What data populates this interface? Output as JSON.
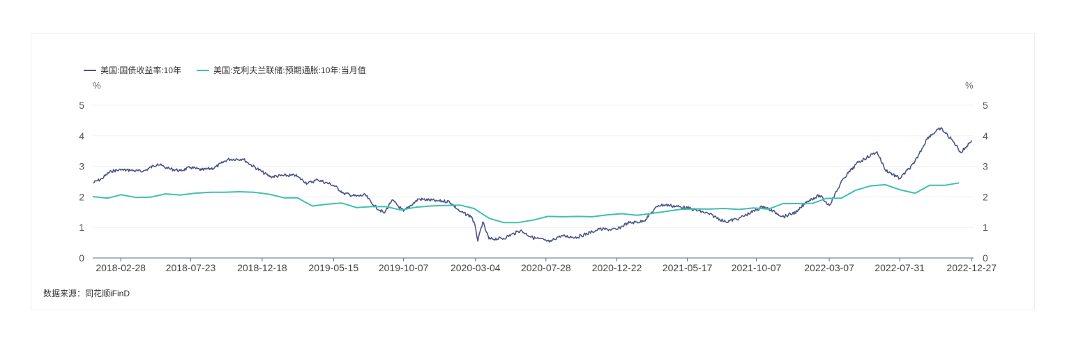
{
  "legend": [
    {
      "label": "美国:国债收益率:10年",
      "color": "#4b5488"
    },
    {
      "label": "美国:克利夫兰联储:预期通胀:10年:当月值",
      "color": "#3fbfb0"
    }
  ],
  "source_text": "数据来源：同花顺iFinD",
  "chart_data": {
    "type": "line",
    "y_unit_left": "%",
    "y_unit_right": "%",
    "ylim": [
      0,
      5
    ],
    "yticks": [
      0,
      1,
      2,
      3,
      4,
      5
    ],
    "xlim": [
      "2018-01-01",
      "2022-12-31"
    ],
    "xticks": [
      "2018-02-28",
      "2018-07-23",
      "2018-12-18",
      "2019-05-15",
      "2019-10-07",
      "2020-03-04",
      "2020-07-28",
      "2020-12-22",
      "2021-05-17",
      "2021-10-07",
      "2022-03-07",
      "2022-07-31",
      "2022-12-27"
    ],
    "grid": true,
    "legend_position": "top-left",
    "series": [
      {
        "name": "美国:国债收益率:10年",
        "color": "#4b5488",
        "style": "daily-noisy",
        "points": [
          [
            "2018-01-02",
            2.46
          ],
          [
            "2018-01-20",
            2.6
          ],
          [
            "2018-02-08",
            2.85
          ],
          [
            "2018-02-28",
            2.88
          ],
          [
            "2018-03-20",
            2.87
          ],
          [
            "2018-04-15",
            2.83
          ],
          [
            "2018-05-15",
            3.08
          ],
          [
            "2018-06-05",
            2.93
          ],
          [
            "2018-07-01",
            2.86
          ],
          [
            "2018-07-23",
            2.96
          ],
          [
            "2018-08-15",
            2.88
          ],
          [
            "2018-09-10",
            2.95
          ],
          [
            "2018-10-08",
            3.23
          ],
          [
            "2018-11-08",
            3.24
          ],
          [
            "2018-11-25",
            3.05
          ],
          [
            "2018-12-18",
            2.82
          ],
          [
            "2019-01-03",
            2.66
          ],
          [
            "2019-02-01",
            2.7
          ],
          [
            "2019-02-25",
            2.7
          ],
          [
            "2019-03-22",
            2.44
          ],
          [
            "2019-04-12",
            2.56
          ],
          [
            "2019-05-15",
            2.38
          ],
          [
            "2019-06-05",
            2.12
          ],
          [
            "2019-07-01",
            2.02
          ],
          [
            "2019-07-20",
            2.06
          ],
          [
            "2019-08-05",
            1.73
          ],
          [
            "2019-08-28",
            1.47
          ],
          [
            "2019-09-13",
            1.9
          ],
          [
            "2019-10-07",
            1.53
          ],
          [
            "2019-11-07",
            1.93
          ],
          [
            "2019-12-15",
            1.87
          ],
          [
            "2020-01-10",
            1.85
          ],
          [
            "2020-02-01",
            1.52
          ],
          [
            "2020-02-25",
            1.35
          ],
          [
            "2020-03-04",
            1.0
          ],
          [
            "2020-03-09",
            0.55
          ],
          [
            "2020-03-19",
            1.18
          ],
          [
            "2020-04-01",
            0.62
          ],
          [
            "2020-05-01",
            0.64
          ],
          [
            "2020-06-05",
            0.9
          ],
          [
            "2020-07-01",
            0.66
          ],
          [
            "2020-07-28",
            0.58
          ],
          [
            "2020-08-04",
            0.52
          ],
          [
            "2020-08-25",
            0.72
          ],
          [
            "2020-10-01",
            0.68
          ],
          [
            "2020-11-01",
            0.86
          ],
          [
            "2020-11-15",
            0.94
          ],
          [
            "2020-12-22",
            0.93
          ],
          [
            "2021-01-12",
            1.14
          ],
          [
            "2021-02-15",
            1.2
          ],
          [
            "2021-03-18",
            1.72
          ],
          [
            "2021-04-01",
            1.74
          ],
          [
            "2021-05-17",
            1.64
          ],
          [
            "2021-06-30",
            1.45
          ],
          [
            "2021-08-04",
            1.18
          ],
          [
            "2021-09-01",
            1.3
          ],
          [
            "2021-10-07",
            1.57
          ],
          [
            "2021-10-21",
            1.69
          ],
          [
            "2021-12-03",
            1.35
          ],
          [
            "2021-12-31",
            1.52
          ],
          [
            "2022-01-20",
            1.86
          ],
          [
            "2022-02-15",
            2.05
          ],
          [
            "2022-03-07",
            1.72
          ],
          [
            "2022-04-05",
            2.6
          ],
          [
            "2022-05-06",
            3.13
          ],
          [
            "2022-06-14",
            3.48
          ],
          [
            "2022-07-01",
            2.89
          ],
          [
            "2022-07-31",
            2.6
          ],
          [
            "2022-08-30",
            3.1
          ],
          [
            "2022-09-27",
            3.95
          ],
          [
            "2022-10-24",
            4.25
          ],
          [
            "2022-11-20",
            3.8
          ],
          [
            "2022-12-05",
            3.45
          ],
          [
            "2022-12-27",
            3.85
          ]
        ]
      },
      {
        "name": "美国:克利夫兰联储:预期通胀:10年:当月值",
        "color": "#3fbfb0",
        "style": "monthly-smooth",
        "points": [
          [
            "2018-01-01",
            2.01
          ],
          [
            "2018-02-01",
            1.96
          ],
          [
            "2018-03-01",
            2.07
          ],
          [
            "2018-04-01",
            1.98
          ],
          [
            "2018-05-01",
            1.99
          ],
          [
            "2018-06-01",
            2.1
          ],
          [
            "2018-07-01",
            2.06
          ],
          [
            "2018-08-01",
            2.12
          ],
          [
            "2018-09-01",
            2.15
          ],
          [
            "2018-10-01",
            2.15
          ],
          [
            "2018-11-01",
            2.17
          ],
          [
            "2018-12-01",
            2.15
          ],
          [
            "2019-01-01",
            2.09
          ],
          [
            "2019-02-01",
            1.97
          ],
          [
            "2019-03-01",
            1.97
          ],
          [
            "2019-04-01",
            1.7
          ],
          [
            "2019-05-01",
            1.76
          ],
          [
            "2019-06-01",
            1.8
          ],
          [
            "2019-07-01",
            1.65
          ],
          [
            "2019-08-01",
            1.68
          ],
          [
            "2019-09-01",
            1.68
          ],
          [
            "2019-10-01",
            1.57
          ],
          [
            "2019-11-01",
            1.66
          ],
          [
            "2019-12-01",
            1.7
          ],
          [
            "2020-01-01",
            1.72
          ],
          [
            "2020-02-01",
            1.73
          ],
          [
            "2020-03-01",
            1.62
          ],
          [
            "2020-04-01",
            1.3
          ],
          [
            "2020-05-01",
            1.16
          ],
          [
            "2020-06-01",
            1.16
          ],
          [
            "2020-07-01",
            1.24
          ],
          [
            "2020-08-01",
            1.36
          ],
          [
            "2020-09-01",
            1.35
          ],
          [
            "2020-10-01",
            1.36
          ],
          [
            "2020-11-01",
            1.35
          ],
          [
            "2020-12-01",
            1.41
          ],
          [
            "2021-01-01",
            1.45
          ],
          [
            "2021-02-01",
            1.4
          ],
          [
            "2021-03-01",
            1.45
          ],
          [
            "2021-04-01",
            1.52
          ],
          [
            "2021-05-01",
            1.59
          ],
          [
            "2021-06-01",
            1.61
          ],
          [
            "2021-07-01",
            1.6
          ],
          [
            "2021-08-01",
            1.62
          ],
          [
            "2021-09-01",
            1.59
          ],
          [
            "2021-10-01",
            1.64
          ],
          [
            "2021-11-01",
            1.6
          ],
          [
            "2021-12-01",
            1.78
          ],
          [
            "2022-01-01",
            1.78
          ],
          [
            "2022-02-01",
            1.79
          ],
          [
            "2022-03-01",
            1.95
          ],
          [
            "2022-04-01",
            1.96
          ],
          [
            "2022-05-01",
            2.22
          ],
          [
            "2022-06-01",
            2.36
          ],
          [
            "2022-07-01",
            2.4
          ],
          [
            "2022-08-01",
            2.23
          ],
          [
            "2022-09-01",
            2.12
          ],
          [
            "2022-10-01",
            2.38
          ],
          [
            "2022-11-01",
            2.38
          ],
          [
            "2022-12-01",
            2.46
          ]
        ]
      }
    ]
  }
}
